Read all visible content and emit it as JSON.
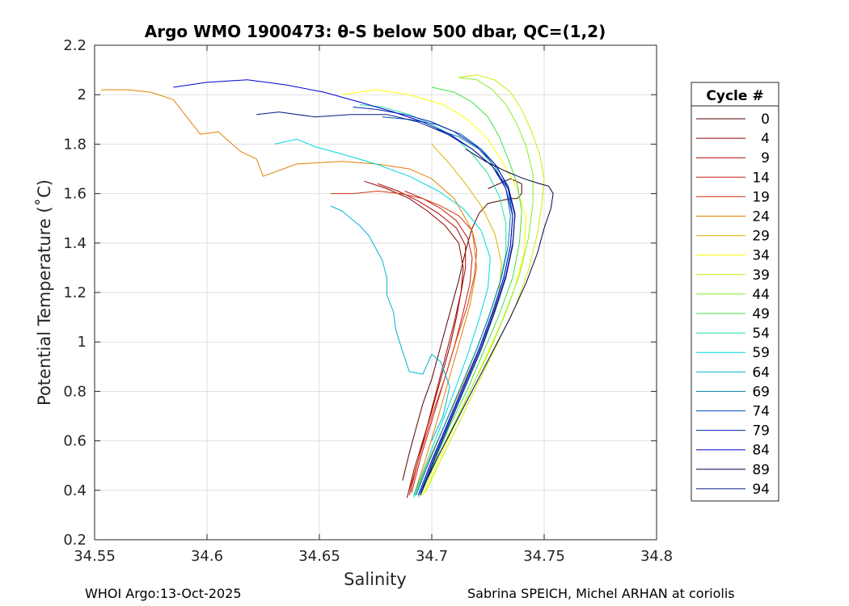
{
  "chart_data": {
    "type": "line",
    "title": "Argo WMO 1900473: θ-S below 500 dbar,  QC=(1,2)",
    "xlabel": "Salinity",
    "ylabel": "Potential Temperature (˚C)",
    "xlim": [
      34.55,
      34.8
    ],
    "ylim": [
      0.2,
      2.2
    ],
    "xticks": [
      "34.55",
      "34.6",
      "34.65",
      "34.7",
      "34.75",
      "34.8"
    ],
    "yticks": [
      "0.2",
      "0.4",
      "0.6",
      "0.8",
      "1",
      "1.2",
      "1.4",
      "1.6",
      "1.8",
      "2",
      "2.2"
    ],
    "grid": true,
    "legend": {
      "title": "Cycle #",
      "placement": "right-outside",
      "entries": [
        {
          "label": "0",
          "color": "#550000"
        },
        {
          "label": "4",
          "color": "#8b0000"
        },
        {
          "label": "9",
          "color": "#b00000"
        },
        {
          "label": "14",
          "color": "#c81818"
        },
        {
          "label": "19",
          "color": "#d43a10"
        },
        {
          "label": "24",
          "color": "#e08000"
        },
        {
          "label": "29",
          "color": "#e0b400"
        },
        {
          "label": "34",
          "color": "#ffff00"
        },
        {
          "label": "39",
          "color": "#c8f000"
        },
        {
          "label": "44",
          "color": "#88ee22"
        },
        {
          "label": "49",
          "color": "#44e044"
        },
        {
          "label": "54",
          "color": "#22e0a0"
        },
        {
          "label": "59",
          "color": "#00d8e0"
        },
        {
          "label": "64",
          "color": "#00b4d0"
        },
        {
          "label": "69",
          "color": "#0080a0"
        },
        {
          "label": "74",
          "color": "#0050c0"
        },
        {
          "label": "79",
          "color": "#0022b0"
        },
        {
          "label": "84",
          "color": "#0000d0"
        },
        {
          "label": "89",
          "color": "#000044"
        },
        {
          "label": "94",
          "color": "#001a80"
        }
      ]
    },
    "series": [
      {
        "name": "0",
        "color": "#550000",
        "x": [
          34.687,
          34.69,
          34.693,
          34.696,
          34.7,
          34.703,
          34.706,
          34.709,
          34.712,
          34.714,
          34.716,
          34.718,
          34.721,
          34.725,
          34.73,
          34.735,
          34.738,
          34.74,
          34.74,
          34.735,
          34.725
        ],
        "y": [
          0.44,
          0.55,
          0.65,
          0.75,
          0.85,
          0.95,
          1.05,
          1.15,
          1.25,
          1.33,
          1.4,
          1.46,
          1.52,
          1.56,
          1.57,
          1.58,
          1.58,
          1.6,
          1.64,
          1.66,
          1.62
        ]
      },
      {
        "name": "4",
        "color": "#8b0000",
        "x": [
          34.689,
          34.692,
          34.696,
          34.7,
          34.704,
          34.708,
          34.711,
          34.713,
          34.714,
          34.712,
          34.706,
          34.698,
          34.69,
          34.68,
          34.67
        ],
        "y": [
          0.37,
          0.48,
          0.6,
          0.72,
          0.85,
          0.98,
          1.1,
          1.2,
          1.3,
          1.4,
          1.47,
          1.53,
          1.58,
          1.62,
          1.65
        ]
      },
      {
        "name": "9",
        "color": "#b00000",
        "x": [
          34.69,
          34.694,
          34.698,
          34.702,
          34.706,
          34.71,
          34.713,
          34.715,
          34.715,
          34.711,
          34.703,
          34.694,
          34.685,
          34.676
        ],
        "y": [
          0.38,
          0.52,
          0.66,
          0.8,
          0.94,
          1.08,
          1.2,
          1.3,
          1.39,
          1.46,
          1.52,
          1.57,
          1.61,
          1.64
        ]
      },
      {
        "name": "14",
        "color": "#c81818",
        "x": [
          34.691,
          34.695,
          34.7,
          34.705,
          34.71,
          34.714,
          34.717,
          34.718,
          34.716,
          34.711,
          34.704,
          34.696,
          34.688
        ],
        "y": [
          0.39,
          0.53,
          0.68,
          0.83,
          0.98,
          1.12,
          1.24,
          1.34,
          1.42,
          1.49,
          1.54,
          1.58,
          1.61
        ]
      },
      {
        "name": "19",
        "color": "#d43a10",
        "x": [
          34.69,
          34.695,
          34.7,
          34.706,
          34.711,
          34.716,
          34.719,
          34.72,
          34.718,
          34.712,
          34.704,
          34.696,
          34.686,
          34.676,
          34.665,
          34.655
        ],
        "y": [
          0.4,
          0.55,
          0.7,
          0.86,
          1.01,
          1.15,
          1.27,
          1.37,
          1.45,
          1.51,
          1.55,
          1.58,
          1.6,
          1.61,
          1.6,
          1.6
        ]
      },
      {
        "name": "24",
        "color": "#e08000",
        "x": [
          34.692,
          34.697,
          34.702,
          34.707,
          34.712,
          34.717,
          34.72,
          34.718,
          34.71,
          34.7,
          34.69,
          34.675,
          34.66,
          34.64,
          34.625,
          34.622,
          34.615,
          34.605,
          34.597,
          34.585,
          34.575,
          34.565,
          34.553
        ],
        "y": [
          0.38,
          0.52,
          0.67,
          0.83,
          0.99,
          1.15,
          1.3,
          1.45,
          1.58,
          1.66,
          1.7,
          1.72,
          1.73,
          1.72,
          1.67,
          1.74,
          1.77,
          1.85,
          1.84,
          1.98,
          2.01,
          2.02,
          2.02
        ]
      },
      {
        "name": "29",
        "color": "#e0b400",
        "x": [
          34.693,
          34.699,
          34.706,
          34.713,
          34.72,
          34.726,
          34.73,
          34.731,
          34.728,
          34.722,
          34.715,
          34.708,
          34.7
        ],
        "y": [
          0.4,
          0.53,
          0.67,
          0.81,
          0.95,
          1.08,
          1.2,
          1.32,
          1.44,
          1.55,
          1.64,
          1.72,
          1.8
        ]
      },
      {
        "name": "34",
        "color": "#ffff00",
        "x": [
          34.696,
          34.703,
          34.71,
          34.717,
          34.724,
          34.731,
          34.737,
          34.741,
          34.742,
          34.738,
          34.732,
          34.725,
          34.716,
          34.705,
          34.69,
          34.675,
          34.66
        ],
        "y": [
          0.38,
          0.52,
          0.66,
          0.8,
          0.94,
          1.08,
          1.22,
          1.36,
          1.5,
          1.62,
          1.72,
          1.82,
          1.9,
          1.96,
          2.0,
          2.02,
          2.0
        ]
      },
      {
        "name": "39",
        "color": "#c8f000",
        "x": [
          34.697,
          34.705,
          34.713,
          34.721,
          34.729,
          34.737,
          34.743,
          34.747,
          34.749,
          34.75,
          34.748,
          34.744,
          34.74,
          34.735,
          34.728,
          34.72,
          34.712
        ],
        "y": [
          0.39,
          0.54,
          0.69,
          0.84,
          0.99,
          1.14,
          1.29,
          1.44,
          1.56,
          1.66,
          1.76,
          1.86,
          1.94,
          2.01,
          2.06,
          2.08,
          2.07
        ]
      },
      {
        "name": "44",
        "color": "#88ee22",
        "x": [
          34.695,
          34.702,
          34.71,
          34.718,
          34.726,
          34.733,
          34.739,
          34.743,
          34.745,
          34.745,
          34.742,
          34.738,
          34.733,
          34.727,
          34.72,
          34.712
        ],
        "y": [
          0.38,
          0.52,
          0.67,
          0.82,
          0.97,
          1.12,
          1.27,
          1.42,
          1.56,
          1.68,
          1.79,
          1.88,
          1.96,
          2.02,
          2.06,
          2.07
        ]
      },
      {
        "name": "49",
        "color": "#44e044",
        "x": [
          34.694,
          34.701,
          34.708,
          34.716,
          34.723,
          34.73,
          34.736,
          34.739,
          34.74,
          34.738,
          34.734,
          34.73,
          34.725,
          34.718,
          34.71,
          34.7
        ],
        "y": [
          0.37,
          0.51,
          0.66,
          0.81,
          0.96,
          1.11,
          1.26,
          1.4,
          1.53,
          1.64,
          1.74,
          1.83,
          1.91,
          1.97,
          2.01,
          2.03
        ]
      },
      {
        "name": "54",
        "color": "#22e0a0",
        "x": [
          34.692,
          34.698,
          34.705,
          34.712,
          34.719,
          34.725,
          34.73,
          34.733,
          34.733,
          34.73,
          34.725,
          34.718,
          34.71,
          34.7,
          34.69,
          34.678,
          34.668
        ],
        "y": [
          0.37,
          0.5,
          0.65,
          0.8,
          0.95,
          1.09,
          1.23,
          1.36,
          1.48,
          1.59,
          1.68,
          1.76,
          1.83,
          1.88,
          1.92,
          1.95,
          1.96
        ]
      },
      {
        "name": "59",
        "color": "#00d8e0",
        "x": [
          34.692,
          34.698,
          34.704,
          34.71,
          34.716,
          34.721,
          34.725,
          34.726,
          34.722,
          34.714,
          34.703,
          34.69,
          34.675,
          34.66,
          34.648,
          34.64,
          34.63
        ],
        "y": [
          0.38,
          0.52,
          0.66,
          0.8,
          0.95,
          1.09,
          1.22,
          1.34,
          1.45,
          1.54,
          1.61,
          1.67,
          1.72,
          1.76,
          1.79,
          1.82,
          1.8
        ]
      },
      {
        "name": "64",
        "color": "#00b4d0",
        "x": [
          34.7,
          34.705,
          34.708,
          34.704,
          34.7,
          34.696,
          34.69,
          34.686,
          34.684,
          34.683,
          34.68,
          34.68,
          34.678,
          34.675,
          34.672,
          34.668,
          34.664,
          34.66,
          34.655
        ],
        "y": [
          0.6,
          0.7,
          0.82,
          0.92,
          0.95,
          0.87,
          0.88,
          0.99,
          1.05,
          1.12,
          1.19,
          1.26,
          1.33,
          1.38,
          1.43,
          1.47,
          1.5,
          1.53,
          1.55
        ]
      },
      {
        "name": "69",
        "color": "#0080a0",
        "x": [
          34.693,
          34.699,
          34.706,
          34.713,
          34.72,
          34.726,
          34.731,
          34.734,
          34.735,
          34.733,
          34.728,
          34.721,
          34.712,
          34.702
        ],
        "y": [
          0.38,
          0.52,
          0.67,
          0.82,
          0.97,
          1.12,
          1.26,
          1.39,
          1.51,
          1.62,
          1.71,
          1.78,
          1.83,
          1.86
        ]
      },
      {
        "name": "74",
        "color": "#0050c0",
        "x": [
          34.694,
          34.7,
          34.707,
          34.714,
          34.721,
          34.727,
          34.732,
          34.735,
          34.736,
          34.734,
          34.729,
          34.722,
          34.713,
          34.702,
          34.69,
          34.678
        ],
        "y": [
          0.38,
          0.52,
          0.67,
          0.82,
          0.97,
          1.12,
          1.26,
          1.39,
          1.51,
          1.62,
          1.71,
          1.78,
          1.84,
          1.88,
          1.9,
          1.91
        ]
      },
      {
        "name": "79",
        "color": "#0022b0",
        "x": [
          34.695,
          34.701,
          34.708,
          34.715,
          34.722,
          34.728,
          34.733,
          34.736,
          34.737,
          34.734,
          34.728,
          34.72,
          34.71,
          34.7,
          34.688,
          34.676,
          34.665
        ],
        "y": [
          0.39,
          0.53,
          0.68,
          0.83,
          0.98,
          1.13,
          1.27,
          1.4,
          1.52,
          1.63,
          1.72,
          1.79,
          1.85,
          1.89,
          1.92,
          1.94,
          1.95
        ]
      },
      {
        "name": "84",
        "color": "#0000d0",
        "x": [
          34.694,
          34.7,
          34.707,
          34.714,
          34.721,
          34.727,
          34.732,
          34.735,
          34.736,
          34.733,
          34.727,
          34.718,
          34.708,
          34.696,
          34.683,
          34.668,
          34.652,
          34.635,
          34.618,
          34.6,
          34.585
        ],
        "y": [
          0.38,
          0.52,
          0.67,
          0.82,
          0.97,
          1.12,
          1.26,
          1.39,
          1.51,
          1.62,
          1.71,
          1.78,
          1.84,
          1.89,
          1.93,
          1.97,
          2.01,
          2.04,
          2.06,
          2.05,
          2.03
        ]
      },
      {
        "name": "89",
        "color": "#000044",
        "x": [
          34.696,
          34.703,
          34.711,
          34.719,
          34.727,
          34.735,
          34.742,
          34.747,
          34.75,
          34.753,
          34.754,
          34.752,
          34.748,
          34.741,
          34.733,
          34.724,
          34.715
        ],
        "y": [
          0.41,
          0.54,
          0.68,
          0.82,
          0.96,
          1.1,
          1.24,
          1.36,
          1.46,
          1.54,
          1.6,
          1.63,
          1.64,
          1.66,
          1.69,
          1.73,
          1.78
        ]
      },
      {
        "name": "94",
        "color": "#001a80",
        "x": [
          34.695,
          34.701,
          34.708,
          34.715,
          34.722,
          34.728,
          34.733,
          34.736,
          34.737,
          34.734,
          34.727,
          34.718,
          34.707,
          34.694,
          34.68,
          34.664,
          34.648,
          34.632,
          34.622
        ],
        "y": [
          0.38,
          0.52,
          0.67,
          0.82,
          0.97,
          1.12,
          1.26,
          1.39,
          1.51,
          1.62,
          1.71,
          1.78,
          1.84,
          1.89,
          1.92,
          1.92,
          1.91,
          1.93,
          1.92
        ]
      }
    ]
  },
  "footer": {
    "left": "WHOI Argo:13-Oct-2025",
    "right": "Sabrina SPEICH, Michel ARHAN at coriolis"
  }
}
